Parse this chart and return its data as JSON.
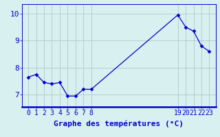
{
  "x": [
    0,
    1,
    2,
    3,
    4,
    5,
    6,
    7,
    8,
    19,
    20,
    21,
    22,
    23
  ],
  "y": [
    7.65,
    7.75,
    7.45,
    7.4,
    7.45,
    6.95,
    6.95,
    7.2,
    7.2,
    9.95,
    9.5,
    9.35,
    8.8,
    8.6
  ],
  "xticks": [
    0,
    1,
    2,
    3,
    4,
    5,
    6,
    7,
    8,
    19,
    20,
    21,
    22,
    23
  ],
  "yticks": [
    7,
    8,
    9,
    10
  ],
  "xlabel": "Graphe des températures (°C)",
  "line_color": "#0000cc",
  "marker": "D",
  "marker_size": 2.5,
  "background_color": "#d8f0f0",
  "grid_color": "#b0c8c8",
  "xlim": [
    -0.8,
    23.8
  ],
  "ylim": [
    6.55,
    10.35
  ],
  "tick_fontsize": 7,
  "xlabel_fontsize": 8
}
